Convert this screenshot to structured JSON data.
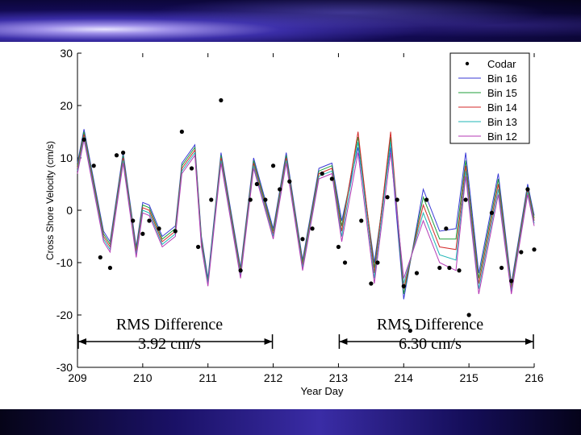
{
  "chart_data": {
    "type": "line",
    "xlabel": "Year Day",
    "ylabel": "Cross Shore Velocity (cm/s)",
    "xlim": [
      209,
      216
    ],
    "ylim": [
      -30,
      30
    ],
    "x_ticks": [
      "209",
      "210",
      "211",
      "212",
      "213",
      "214",
      "215",
      "216"
    ],
    "y_ticks": [
      "30",
      "20",
      "10",
      "0",
      "-10",
      "-20",
      "-30"
    ],
    "legend_position": "top-right",
    "legend": [
      "Codar",
      "Bin 16",
      "Bin 15",
      "Bin 14",
      "Bin 13",
      "Bin 12"
    ],
    "series": [
      {
        "name": "Codar",
        "style": "markers",
        "color": "#000000",
        "points": [
          [
            209.1,
            13.5
          ],
          [
            209.25,
            8.5
          ],
          [
            209.35,
            -9.0
          ],
          [
            209.5,
            -11.0
          ],
          [
            209.6,
            10.5
          ],
          [
            209.7,
            11.0
          ],
          [
            209.85,
            -2.0
          ],
          [
            210.0,
            -4.5
          ],
          [
            210.1,
            -2.0
          ],
          [
            210.25,
            -3.5
          ],
          [
            210.5,
            -4.0
          ],
          [
            210.6,
            15.0
          ],
          [
            210.75,
            8.0
          ],
          [
            210.85,
            -7.0
          ],
          [
            211.05,
            2.0
          ],
          [
            211.2,
            21.0
          ],
          [
            211.5,
            -11.5
          ],
          [
            211.65,
            2.0
          ],
          [
            211.75,
            5.0
          ],
          [
            211.88,
            2.0
          ],
          [
            212.0,
            8.5
          ],
          [
            212.1,
            4.0
          ],
          [
            212.25,
            5.5
          ],
          [
            212.45,
            -5.5
          ],
          [
            212.6,
            -3.5
          ],
          [
            212.75,
            7.0
          ],
          [
            212.9,
            6.0
          ],
          [
            213.0,
            -7.0
          ],
          [
            213.1,
            -10.0
          ],
          [
            213.35,
            -2.0
          ],
          [
            213.5,
            -14.0
          ],
          [
            213.6,
            -10.0
          ],
          [
            213.75,
            2.5
          ],
          [
            213.9,
            2.0
          ],
          [
            214.0,
            -14.5
          ],
          [
            214.1,
            -23.0
          ],
          [
            214.2,
            -12.0
          ],
          [
            214.35,
            2.0
          ],
          [
            214.55,
            -11.0
          ],
          [
            214.65,
            -3.5
          ],
          [
            214.7,
            -11.0
          ],
          [
            214.85,
            -11.5
          ],
          [
            214.95,
            2.0
          ],
          [
            215.0,
            -20.0
          ],
          [
            215.35,
            -0.5
          ],
          [
            215.5,
            -11.0
          ],
          [
            215.65,
            -13.5
          ],
          [
            215.8,
            -8.0
          ],
          [
            215.9,
            4.0
          ],
          [
            216.0,
            -7.5
          ]
        ]
      },
      {
        "name": "Bin 16",
        "color": "#3a3ad6",
        "x": [
          209,
          209.1,
          209.4,
          209.5,
          209.7,
          209.9,
          210.0,
          210.1,
          210.3,
          210.5,
          210.6,
          210.8,
          210.9,
          211.0,
          211.2,
          211.5,
          211.7,
          212.0,
          212.2,
          212.45,
          212.7,
          212.9,
          213.05,
          213.3,
          213.55,
          213.8,
          214.0,
          214.3,
          214.55,
          214.8,
          214.95,
          215.15,
          215.45,
          215.65,
          215.9,
          216.0
        ],
        "values": [
          9,
          15.5,
          -4,
          -6,
          11,
          -7,
          1.5,
          1,
          -5,
          -3,
          9,
          12.5,
          -5,
          -13,
          11,
          -11,
          10,
          -3.5,
          11,
          -9.5,
          8,
          9,
          -2,
          12,
          -10,
          12,
          -17,
          4,
          -4,
          -3.5,
          11,
          -12,
          7,
          -14,
          5,
          -1
        ]
      },
      {
        "name": "Bin 15",
        "color": "#1f9e3a",
        "x": [
          209,
          209.1,
          209.4,
          209.5,
          209.7,
          209.9,
          210.0,
          210.1,
          210.3,
          210.5,
          210.6,
          210.8,
          210.9,
          211.0,
          211.2,
          211.5,
          211.7,
          212.0,
          212.2,
          212.45,
          212.7,
          212.9,
          213.05,
          213.3,
          213.55,
          213.8,
          214.0,
          214.3,
          214.55,
          214.8,
          214.95,
          215.15,
          215.45,
          215.65,
          215.9,
          216.0
        ],
        "values": [
          8.5,
          15,
          -4.5,
          -6.5,
          10.5,
          -7.5,
          1,
          0.5,
          -5.5,
          -3.5,
          8.5,
          12,
          -5.5,
          -13.5,
          10.5,
          -11.5,
          9.5,
          -4,
          10.5,
          -10,
          7.5,
          8.5,
          -3,
          14,
          -11,
          14,
          -16,
          2.5,
          -5.5,
          -5.5,
          9.5,
          -13,
          6,
          -14.5,
          4.5,
          -1.5
        ]
      },
      {
        "name": "Bin 14",
        "color": "#d42a2a",
        "x": [
          209,
          209.1,
          209.4,
          209.5,
          209.7,
          209.9,
          210.0,
          210.1,
          210.3,
          210.5,
          210.6,
          210.8,
          210.9,
          211.0,
          211.2,
          211.5,
          211.7,
          212.0,
          212.2,
          212.45,
          212.7,
          212.9,
          213.05,
          213.3,
          213.55,
          213.8,
          214.0,
          214.3,
          214.55,
          214.8,
          214.95,
          215.15,
          215.45,
          215.65,
          215.9,
          216.0
        ],
        "values": [
          8,
          14.5,
          -5,
          -7,
          10,
          -8,
          0.5,
          0,
          -6,
          -4,
          8,
          11.5,
          -6,
          -14,
          10,
          -12,
          9,
          -4.5,
          10,
          -10.5,
          7,
          8,
          -4,
          15,
          -12,
          15,
          -15,
          1,
          -7,
          -7.5,
          8.5,
          -14,
          5,
          -15,
          4,
          -2
        ]
      },
      {
        "name": "Bin 13",
        "color": "#1fb5b5",
        "x": [
          209,
          209.1,
          209.4,
          209.5,
          209.7,
          209.9,
          210.0,
          210.1,
          210.3,
          210.5,
          210.6,
          210.8,
          210.9,
          211.0,
          211.2,
          211.5,
          211.7,
          212.0,
          212.2,
          212.45,
          212.7,
          212.9,
          213.05,
          213.3,
          213.55,
          213.8,
          214.0,
          214.3,
          214.55,
          214.8,
          214.95,
          215.15,
          215.45,
          215.65,
          215.9,
          216.0
        ],
        "values": [
          7.5,
          14,
          -5.5,
          -7.5,
          9.5,
          -8.5,
          0,
          -0.5,
          -6.5,
          -4.5,
          7.5,
          11,
          -6.5,
          -14,
          9.5,
          -12.5,
          8.5,
          -5,
          9.5,
          -11,
          6.5,
          7.5,
          -5,
          13,
          -13,
          13,
          -14,
          -0.5,
          -8.5,
          -9.5,
          7.5,
          -15,
          4,
          -15.5,
          3.5,
          -2.5
        ]
      },
      {
        "name": "Bin 12",
        "color": "#b53ab5",
        "x": [
          209,
          209.1,
          209.4,
          209.5,
          209.7,
          209.9,
          210.0,
          210.1,
          210.3,
          210.5,
          210.6,
          210.8,
          210.9,
          211.0,
          211.2,
          211.5,
          211.7,
          212.0,
          212.2,
          212.45,
          212.7,
          212.9,
          213.05,
          213.3,
          213.55,
          213.8,
          214.0,
          214.3,
          214.55,
          214.8,
          214.95,
          215.15,
          215.45,
          215.65,
          215.9,
          216.0
        ],
        "values": [
          7,
          13.5,
          -6,
          -8,
          9,
          -9,
          -0.5,
          -1,
          -7,
          -5,
          7,
          10.5,
          -7,
          -14.5,
          9,
          -13,
          8,
          -5.5,
          9,
          -11.5,
          6,
          7,
          -6,
          11,
          -14,
          11,
          -13,
          -2,
          -10,
          -11.5,
          6.5,
          -16,
          3,
          -16,
          3,
          -3
        ]
      }
    ]
  },
  "annotations": [
    {
      "line1": "RMS Difference",
      "line2": "3.92 cm/s",
      "x_from": 209,
      "x_to": 212
    },
    {
      "line1": "RMS Difference",
      "line2": "6.30 cm/s",
      "x_from": 213,
      "x_to": 216
    }
  ]
}
